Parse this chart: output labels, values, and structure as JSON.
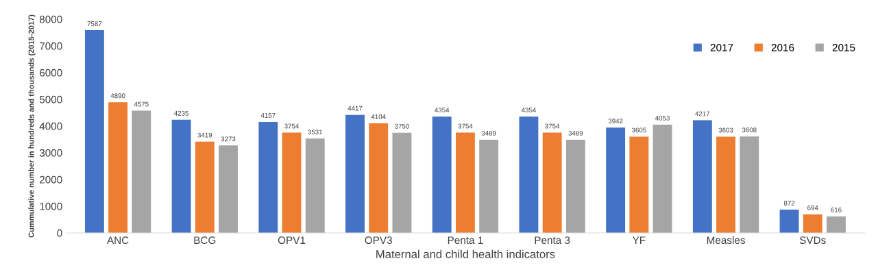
{
  "chart_data": {
    "type": "bar",
    "xlabel": "Maternal and child health indicators",
    "ylabel": "Cummulative number in hundreds and thousands (2015-2017)",
    "categories": [
      "ANC",
      "BCG",
      "OPV1",
      "OPV3",
      "Penta 1",
      "Penta 3",
      "YF",
      "Measles",
      "SVDs"
    ],
    "series": [
      {
        "name": "2017",
        "color": "#4472c4",
        "values": [
          7587,
          4235,
          4157,
          4417,
          4354,
          4354,
          3942,
          4217,
          872
        ]
      },
      {
        "name": "2016",
        "color": "#ed7d31",
        "values": [
          4890,
          3419,
          3754,
          4104,
          3754,
          3754,
          3605,
          3603,
          694
        ]
      },
      {
        "name": "2015",
        "color": "#a5a5a5",
        "values": [
          4575,
          3273,
          3531,
          3750,
          3489,
          3489,
          4053,
          3608,
          616
        ]
      }
    ],
    "ylim": [
      0,
      8000
    ],
    "yticks": [
      0,
      1000,
      2000,
      3000,
      4000,
      5000,
      6000,
      7000,
      8000
    ],
    "grid": false,
    "legend": "top right",
    "data_labels": true
  }
}
